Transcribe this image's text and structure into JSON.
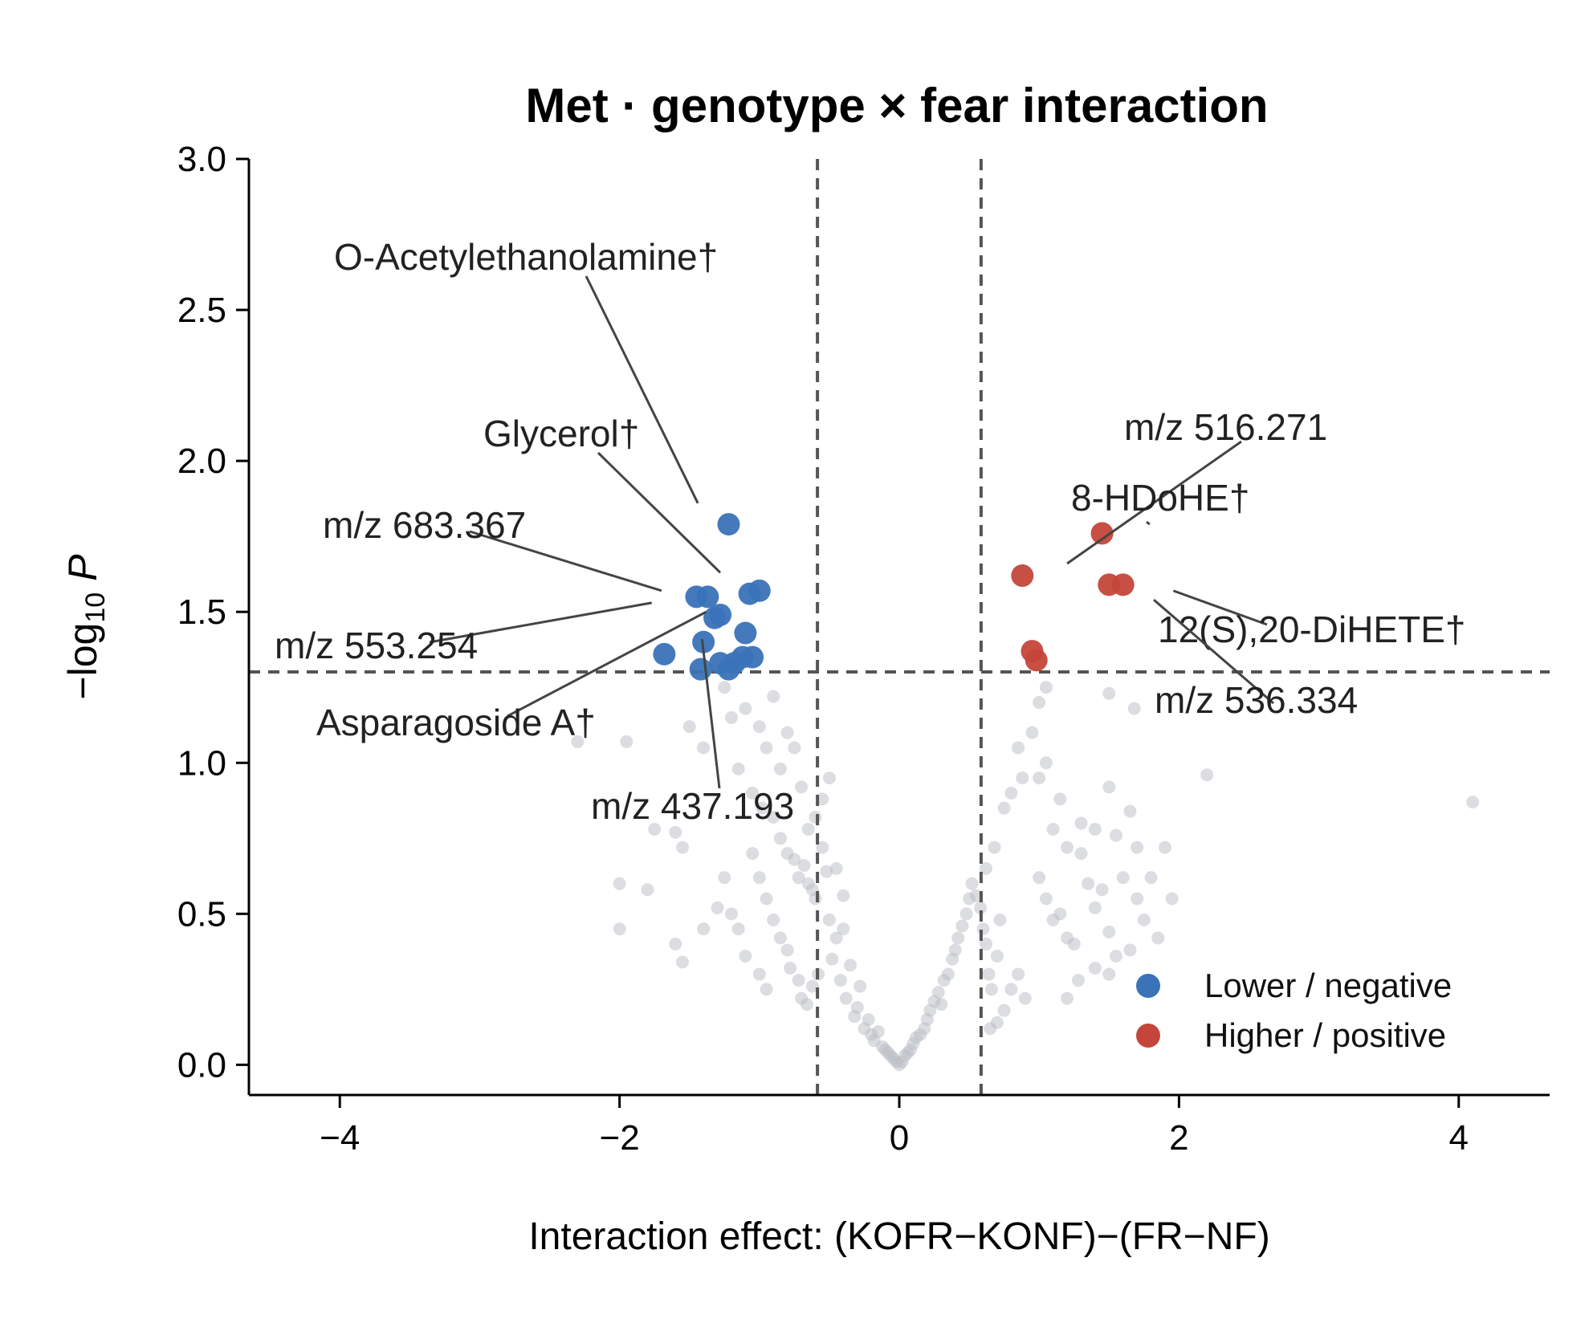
{
  "chart_data": {
    "type": "scatter",
    "title": "Met · genotype × fear interaction",
    "xlabel": "Interaction effect: (KOFR−KONF)−(FR−NF)",
    "ylabel_main": "−log",
    "ylabel_sub": "10",
    "ylabel_var": "P",
    "xlim": [
      -4.65,
      4.65
    ],
    "ylim": [
      -0.1,
      3.0
    ],
    "x_ticks": [
      -4,
      -2,
      0,
      2,
      4
    ],
    "x_tick_labels": [
      "−4",
      "−2",
      "0",
      "2",
      "4"
    ],
    "y_ticks": [
      0.0,
      0.5,
      1.0,
      1.5,
      2.0,
      2.5,
      3.0
    ],
    "y_tick_labels": [
      "0.0",
      "0.5",
      "1.0",
      "1.5",
      "2.0",
      "2.5",
      "3.0"
    ],
    "grid": false,
    "legend_position": "bottom-right",
    "thresholds": {
      "x": [
        -0.585,
        0.585
      ],
      "y": 1.301
    },
    "colors": {
      "negative": "#3a73b8",
      "positive": "#c4463a",
      "background": "#b8bcc3",
      "reference": "#555555"
    },
    "series": [
      {
        "name": "Lower / negative",
        "role": "negative",
        "points": [
          [
            -1.22,
            1.79
          ],
          [
            -1.45,
            1.55
          ],
          [
            -1.37,
            1.55
          ],
          [
            -1.0,
            1.57
          ],
          [
            -1.07,
            1.56
          ],
          [
            -1.28,
            1.49
          ],
          [
            -1.32,
            1.48
          ],
          [
            -1.1,
            1.43
          ],
          [
            -1.4,
            1.4
          ],
          [
            -1.68,
            1.36
          ],
          [
            -1.12,
            1.35
          ],
          [
            -1.05,
            1.35
          ],
          [
            -1.18,
            1.33
          ],
          [
            -1.28,
            1.33
          ],
          [
            -1.42,
            1.31
          ],
          [
            -1.22,
            1.31
          ]
        ]
      },
      {
        "name": "Higher / positive",
        "role": "positive",
        "points": [
          [
            1.45,
            1.76
          ],
          [
            0.88,
            1.62
          ],
          [
            1.5,
            1.59
          ],
          [
            1.6,
            1.59
          ],
          [
            0.95,
            1.37
          ],
          [
            0.98,
            1.34
          ]
        ]
      },
      {
        "role": "background",
        "points": [
          [
            -2.3,
            1.07
          ],
          [
            -2.0,
            0.6
          ],
          [
            -2.0,
            0.45
          ],
          [
            -1.95,
            1.07
          ],
          [
            -1.75,
            0.78
          ],
          [
            -1.6,
            0.77
          ],
          [
            -1.8,
            0.58
          ],
          [
            -1.55,
            0.72
          ],
          [
            -1.6,
            0.4
          ],
          [
            -1.55,
            0.34
          ],
          [
            -1.4,
            0.45
          ],
          [
            -1.3,
            0.52
          ],
          [
            -1.5,
            1.12
          ],
          [
            -1.4,
            1.05
          ],
          [
            -1.25,
            1.25
          ],
          [
            -1.2,
            1.15
          ],
          [
            -1.1,
            1.18
          ],
          [
            -1.0,
            1.12
          ],
          [
            -0.95,
            1.05
          ],
          [
            -0.9,
            1.22
          ],
          [
            -0.85,
            0.98
          ],
          [
            -0.8,
            1.1
          ],
          [
            -0.75,
            1.05
          ],
          [
            -0.7,
            0.92
          ],
          [
            -1.15,
            0.98
          ],
          [
            -1.05,
            0.9
          ],
          [
            -0.98,
            0.85
          ],
          [
            -0.9,
            0.82
          ],
          [
            -0.85,
            0.75
          ],
          [
            -0.8,
            0.7
          ],
          [
            -0.75,
            0.68
          ],
          [
            -0.72,
            0.62
          ],
          [
            -0.68,
            0.66
          ],
          [
            -0.65,
            0.6
          ],
          [
            -0.62,
            0.58
          ],
          [
            -0.6,
            0.55
          ],
          [
            -1.05,
            0.7
          ],
          [
            -1.0,
            0.62
          ],
          [
            -0.95,
            0.55
          ],
          [
            -0.9,
            0.48
          ],
          [
            -0.85,
            0.42
          ],
          [
            -0.8,
            0.38
          ],
          [
            -1.25,
            0.62
          ],
          [
            -1.2,
            0.5
          ],
          [
            -1.15,
            0.45
          ],
          [
            -1.1,
            0.36
          ],
          [
            -1.0,
            0.3
          ],
          [
            -0.95,
            0.25
          ],
          [
            -0.78,
            0.32
          ],
          [
            -0.72,
            0.28
          ],
          [
            -0.7,
            0.22
          ],
          [
            -0.66,
            0.2
          ],
          [
            -0.62,
            0.26
          ],
          [
            -0.58,
            0.3
          ],
          [
            -0.55,
            0.72
          ],
          [
            -0.52,
            0.64
          ],
          [
            -0.5,
            0.48
          ],
          [
            -0.48,
            0.35
          ],
          [
            -0.45,
            0.42
          ],
          [
            -0.4,
            0.56
          ],
          [
            -0.42,
            0.28
          ],
          [
            -0.38,
            0.22
          ],
          [
            -0.35,
            0.33
          ],
          [
            -0.32,
            0.16
          ],
          [
            -0.3,
            0.19
          ],
          [
            -0.28,
            0.26
          ],
          [
            -0.25,
            0.12
          ],
          [
            -0.22,
            0.15
          ],
          [
            -0.2,
            0.1
          ],
          [
            -0.18,
            0.08
          ],
          [
            -0.15,
            0.11
          ],
          [
            -0.12,
            0.06
          ],
          [
            -0.1,
            0.05
          ],
          [
            -0.08,
            0.04
          ],
          [
            -0.06,
            0.03
          ],
          [
            -0.04,
            0.02
          ],
          [
            -0.02,
            0.01
          ],
          [
            0.0,
            0.0
          ],
          [
            0.02,
            0.01
          ],
          [
            0.04,
            0.03
          ],
          [
            0.06,
            0.04
          ],
          [
            0.08,
            0.05
          ],
          [
            0.1,
            0.07
          ],
          [
            0.12,
            0.09
          ],
          [
            0.15,
            0.1
          ],
          [
            0.18,
            0.12
          ],
          [
            0.2,
            0.15
          ],
          [
            0.22,
            0.18
          ],
          [
            0.25,
            0.21
          ],
          [
            0.28,
            0.24
          ],
          [
            0.3,
            0.2
          ],
          [
            0.32,
            0.28
          ],
          [
            0.35,
            0.3
          ],
          [
            0.38,
            0.35
          ],
          [
            0.4,
            0.38
          ],
          [
            0.42,
            0.42
          ],
          [
            0.45,
            0.46
          ],
          [
            0.48,
            0.5
          ],
          [
            0.5,
            0.55
          ],
          [
            0.52,
            0.6
          ],
          [
            0.55,
            0.56
          ],
          [
            0.58,
            0.52
          ],
          [
            0.6,
            0.45
          ],
          [
            0.62,
            0.4
          ],
          [
            0.64,
            0.3
          ],
          [
            0.66,
            0.25
          ],
          [
            0.7,
            0.36
          ],
          [
            0.72,
            0.48
          ],
          [
            0.62,
            0.65
          ],
          [
            0.68,
            0.72
          ],
          [
            0.75,
            0.85
          ],
          [
            0.8,
            0.9
          ],
          [
            0.85,
            1.05
          ],
          [
            0.88,
            0.95
          ],
          [
            0.95,
            1.1
          ],
          [
            1.0,
            0.95
          ],
          [
            1.05,
            1.0
          ],
          [
            1.1,
            0.78
          ],
          [
            1.15,
            0.88
          ],
          [
            1.2,
            0.72
          ],
          [
            1.0,
            0.62
          ],
          [
            1.05,
            0.55
          ],
          [
            1.1,
            0.48
          ],
          [
            1.15,
            0.5
          ],
          [
            1.2,
            0.42
          ],
          [
            1.25,
            0.4
          ],
          [
            1.3,
            0.7
          ],
          [
            1.35,
            0.6
          ],
          [
            1.4,
            0.52
          ],
          [
            1.45,
            0.58
          ],
          [
            1.5,
            0.44
          ],
          [
            1.55,
            0.36
          ],
          [
            1.3,
            0.8
          ],
          [
            1.4,
            0.78
          ],
          [
            1.5,
            0.92
          ],
          [
            1.55,
            0.76
          ],
          [
            1.65,
            0.84
          ],
          [
            1.7,
            0.72
          ],
          [
            1.6,
            0.62
          ],
          [
            1.7,
            0.55
          ],
          [
            1.75,
            0.48
          ],
          [
            1.8,
            0.62
          ],
          [
            1.9,
            0.72
          ],
          [
            1.95,
            0.55
          ],
          [
            0.8,
            0.25
          ],
          [
            0.85,
            0.3
          ],
          [
            0.9,
            0.22
          ],
          [
            0.75,
            0.18
          ],
          [
            0.7,
            0.14
          ],
          [
            0.65,
            0.12
          ],
          [
            1.0,
            1.2
          ],
          [
            1.05,
            1.25
          ],
          [
            1.5,
            1.23
          ],
          [
            1.68,
            1.18
          ],
          [
            2.2,
            0.96
          ],
          [
            4.1,
            0.87
          ],
          [
            1.5,
            0.3
          ],
          [
            1.85,
            0.42
          ],
          [
            1.65,
            0.38
          ],
          [
            1.4,
            0.32
          ],
          [
            1.28,
            0.28
          ],
          [
            1.2,
            0.22
          ],
          [
            -0.5,
            0.95
          ],
          [
            -0.55,
            0.88
          ],
          [
            -0.6,
            0.82
          ],
          [
            -0.65,
            0.78
          ],
          [
            -0.45,
            0.65
          ],
          [
            -0.4,
            0.45
          ]
        ]
      }
    ],
    "annotations": [
      {
        "label": "O-Acetylethanolamine†",
        "target": [
          -1.44,
          1.86
        ]
      },
      {
        "label": "Glycerol†",
        "target": [
          -1.28,
          1.63
        ]
      },
      {
        "label": "m/z 683.367",
        "target": [
          -1.7,
          1.57
        ]
      },
      {
        "label": "m/z 553.254",
        "target": [
          -1.77,
          1.53
        ]
      },
      {
        "label": "Asparagoside A†",
        "target": [
          -1.38,
          1.5
        ]
      },
      {
        "label": "m/z 437.193",
        "target": [
          -1.41,
          1.41
        ]
      },
      {
        "label": "m/z 516.271",
        "target": [
          1.2,
          1.66
        ]
      },
      {
        "label": "8-HDoHE†",
        "target": [
          1.79,
          1.79
        ]
      },
      {
        "label": "12(S),20-DiHETE†",
        "target": [
          1.96,
          1.57
        ]
      },
      {
        "label": "m/z 536.334",
        "target": [
          1.82,
          1.54
        ]
      }
    ]
  }
}
